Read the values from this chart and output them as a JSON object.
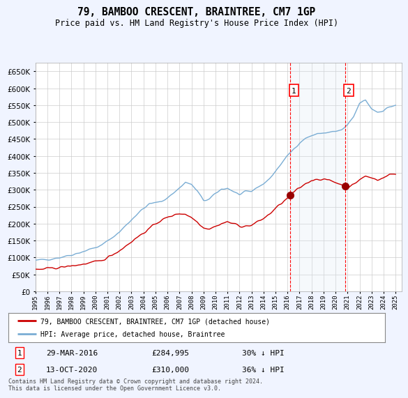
{
  "title": "79, BAMBOO CRESCENT, BRAINTREE, CM7 1GP",
  "subtitle": "Price paid vs. HM Land Registry's House Price Index (HPI)",
  "ylim": [
    0,
    675000
  ],
  "ytick_values": [
    0,
    50000,
    100000,
    150000,
    200000,
    250000,
    300000,
    350000,
    400000,
    450000,
    500000,
    550000,
    600000,
    650000
  ],
  "x_start_year": 1995,
  "x_end_year": 2025,
  "sale1_date": "29-MAR-2016",
  "sale1_price": 284995,
  "sale1_hpi_pct": "30% ↓ HPI",
  "sale1_x": 2016.24,
  "sale2_date": "13-OCT-2020",
  "sale2_price": 310000,
  "sale2_hpi_pct": "36% ↓ HPI",
  "sale2_x": 2020.79,
  "legend_red": "79, BAMBOO CRESCENT, BRAINTREE, CM7 1GP (detached house)",
  "legend_blue": "HPI: Average price, detached house, Braintree",
  "footnote": "Contains HM Land Registry data © Crown copyright and database right 2024.\nThis data is licensed under the Open Government Licence v3.0.",
  "bg_color": "#f0f4ff",
  "plot_bg": "#ffffff",
  "grid_color": "#cccccc",
  "red_line_color": "#cc0000",
  "blue_line_color": "#7aadd4",
  "shade_color": "#dce8f5"
}
